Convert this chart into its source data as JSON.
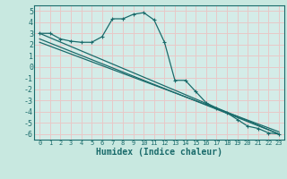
{
  "xlabel": "Humidex (Indice chaleur)",
  "background_color": "#c8e8e0",
  "plot_bg_color": "#d4ece8",
  "grid_color": "#e8c8c8",
  "line_color": "#1a6b6b",
  "ylim": [
    -6.5,
    5.5
  ],
  "xlim": [
    -0.5,
    23.5
  ],
  "yticks": [
    -6,
    -5,
    -4,
    -3,
    -2,
    -1,
    0,
    1,
    2,
    3,
    4,
    5
  ],
  "xticks": [
    0,
    1,
    2,
    3,
    4,
    5,
    6,
    7,
    8,
    9,
    10,
    11,
    12,
    13,
    14,
    15,
    16,
    17,
    18,
    19,
    20,
    21,
    22,
    23
  ],
  "curve_x": [
    0,
    1,
    2,
    3,
    4,
    5,
    6,
    7,
    8,
    9,
    10,
    11,
    12,
    13,
    14,
    15,
    16,
    17,
    18,
    19,
    20,
    21,
    22,
    23
  ],
  "curve_y": [
    3.0,
    3.0,
    2.5,
    2.3,
    2.2,
    2.2,
    2.7,
    4.3,
    4.3,
    4.7,
    4.85,
    4.2,
    2.2,
    -1.2,
    -1.2,
    -2.2,
    -3.2,
    -3.7,
    -4.1,
    -4.7,
    -5.3,
    -5.5,
    -5.9,
    -6.0
  ],
  "line1_x": [
    0,
    23
  ],
  "line1_y": [
    3.0,
    -6.0
  ],
  "line2_x": [
    0,
    23
  ],
  "line2_y": [
    2.5,
    -6.0
  ],
  "line3_x": [
    0,
    23
  ],
  "line3_y": [
    2.2,
    -5.8
  ]
}
